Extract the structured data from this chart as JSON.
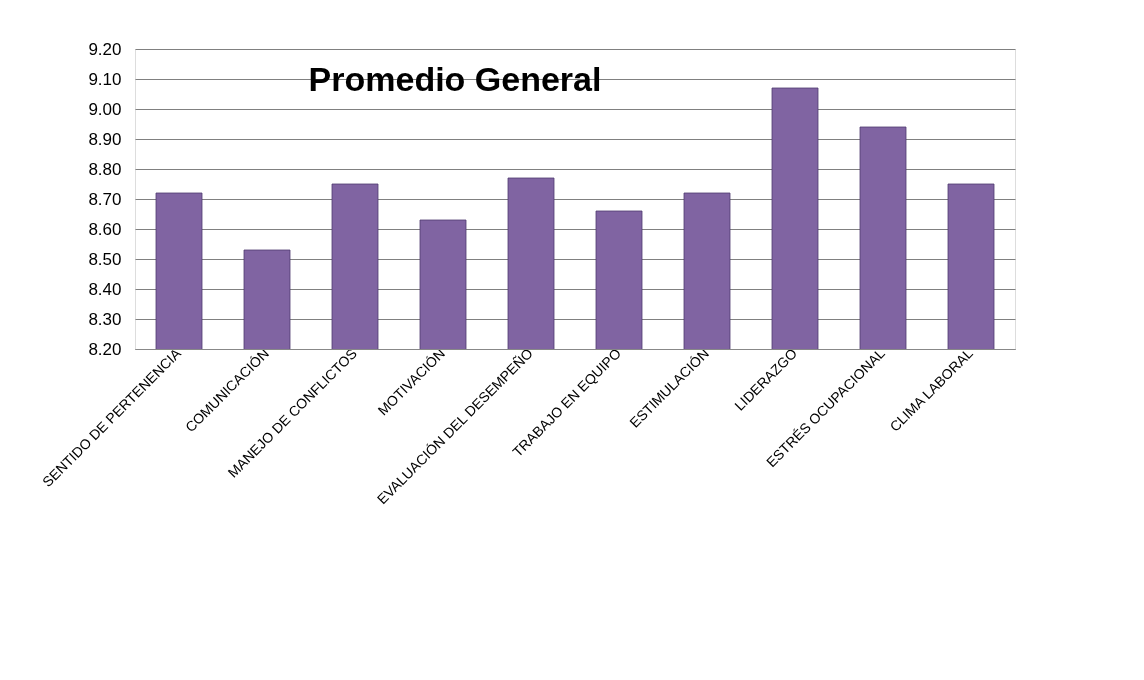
{
  "chart_data": {
    "type": "bar",
    "title": "Promedio General",
    "categories": [
      "SENTIDO DE PERTENENCIA",
      "COMUNICACIÓN",
      "MANEJO DE CONFLICTOS",
      "MOTIVACIÓN",
      "EVALUACIÓN DEL DESEMPEÑO",
      "TRABAJO EN EQUIPO",
      "ESTIMULACIÓN",
      "LIDERAZGO",
      "ESTRÉS OCUPACIONAL",
      "CLIMA LABORAL"
    ],
    "values": [
      8.72,
      8.53,
      8.75,
      8.63,
      8.77,
      8.66,
      8.72,
      9.07,
      8.94,
      8.75
    ],
    "color": "#8064a2",
    "ylim": [
      8.2,
      9.2
    ],
    "yticks": [
      {
        "value": 8.2,
        "label": "8.20"
      },
      {
        "value": 8.3,
        "label": "8.30"
      },
      {
        "value": 8.4,
        "label": "8.40"
      },
      {
        "value": 8.5,
        "label": "8.50"
      },
      {
        "value": 8.6,
        "label": "8.60"
      },
      {
        "value": 8.7,
        "label": "8.70"
      },
      {
        "value": 8.8,
        "label": "8.80"
      },
      {
        "value": 8.9,
        "label": "8.90"
      },
      {
        "value": 9.0,
        "label": "9.00"
      },
      {
        "value": 9.1,
        "label": "9.10"
      },
      {
        "value": 9.2,
        "label": "9.20"
      }
    ],
    "grid": "y"
  }
}
